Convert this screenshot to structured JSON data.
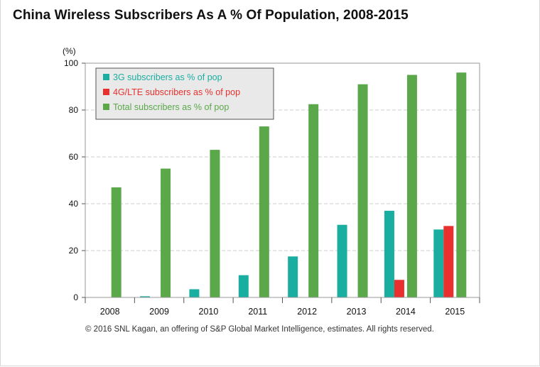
{
  "title": "China Wireless Subscribers As A % Of Population, 2008-2015",
  "footer": "© 2016 SNL Kagan, an offering of S&P Global Market Intelligence, estimates. All rights reserved.",
  "chart_data": {
    "type": "bar",
    "title": "China Wireless Subscribers As A % Of Population, 2008-2015",
    "xlabel": "",
    "ylabel": "(%)",
    "ylim": [
      0,
      100
    ],
    "yticks": [
      0,
      20,
      40,
      60,
      80,
      100
    ],
    "grid": true,
    "legend_position": "top-left",
    "categories": [
      "2008",
      "2009",
      "2010",
      "2011",
      "2012",
      "2013",
      "2014",
      "2015"
    ],
    "series": [
      {
        "name": "3G subscribers as % of pop",
        "color": "#1aaea0",
        "values": [
          0,
          0.5,
          3.5,
          9.5,
          17.5,
          31,
          37,
          29
        ]
      },
      {
        "name": "4G/LTE subscribers as % of pop",
        "color": "#e8312f",
        "values": [
          0,
          0,
          0,
          0,
          0,
          0,
          7.5,
          30.5
        ]
      },
      {
        "name": "Total subscribers as % of pop",
        "color": "#5aa84a",
        "values": [
          47,
          55,
          63,
          73,
          82.5,
          91,
          95,
          96
        ]
      }
    ]
  }
}
